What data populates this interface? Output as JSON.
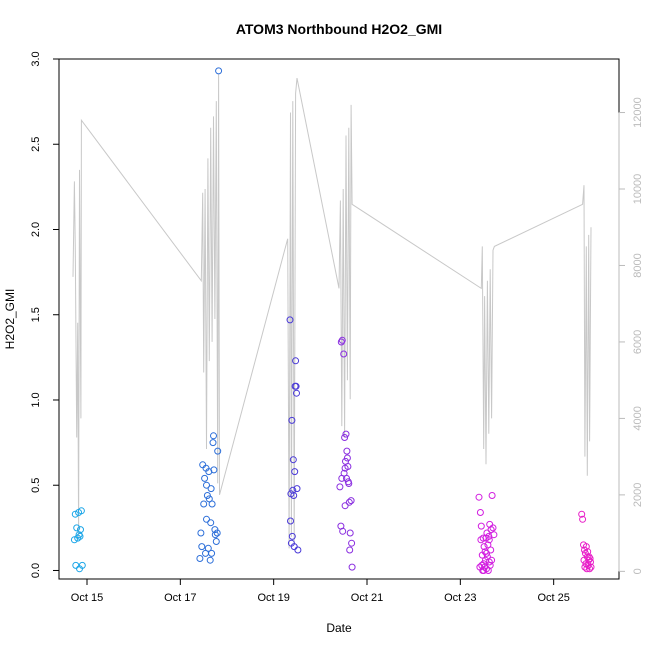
{
  "chart_data": {
    "type": "scatter",
    "title": "ATOM3 Northbound H2O2_GMI",
    "xlabel": "Date",
    "ylabel": "H2O2_GMI",
    "xlim": [
      14.4,
      26.4
    ],
    "ylim": [
      -0.05,
      3.0
    ],
    "x_ticks": [
      {
        "value": 15,
        "label": "Oct 15"
      },
      {
        "value": 17,
        "label": "Oct 17"
      },
      {
        "value": 19,
        "label": "Oct 19"
      },
      {
        "value": 21,
        "label": "Oct 21"
      },
      {
        "value": 23,
        "label": "Oct 23"
      },
      {
        "value": 25,
        "label": "Oct 25"
      }
    ],
    "y_ticks": [
      "0.0",
      "0.5",
      "1.0",
      "1.5",
      "2.0",
      "2.5",
      "3.0"
    ],
    "y2lim": [
      -200,
      13400
    ],
    "y2_ticks": [
      "0",
      "2000",
      "4000",
      "6000",
      "8000",
      "10000",
      "12000"
    ],
    "altitude_color": "#c8c8c8",
    "altitude_series": [
      [
        14.7,
        7700
      ],
      [
        14.73,
        10200
      ],
      [
        14.75,
        8400
      ],
      [
        14.78,
        3500
      ],
      [
        14.8,
        6500
      ],
      [
        14.82,
        900
      ],
      [
        14.84,
        10500
      ],
      [
        14.87,
        4000
      ],
      [
        14.88,
        11800
      ],
      [
        17.45,
        7600
      ],
      [
        17.48,
        9900
      ],
      [
        17.5,
        5200
      ],
      [
        17.53,
        10000
      ],
      [
        17.56,
        3200
      ],
      [
        17.59,
        10800
      ],
      [
        17.62,
        5500
      ],
      [
        17.65,
        11600
      ],
      [
        17.68,
        6000
      ],
      [
        17.71,
        11900
      ],
      [
        17.74,
        6600
      ],
      [
        17.77,
        12300
      ],
      [
        17.8,
        2300
      ],
      [
        17.82,
        13000
      ],
      [
        17.84,
        2000
      ],
      [
        19.3,
        8700
      ],
      [
        19.33,
        600
      ],
      [
        19.36,
        12000
      ],
      [
        19.38,
        900
      ],
      [
        19.41,
        12300
      ],
      [
        19.44,
        700
      ],
      [
        19.47,
        12500
      ],
      [
        19.5,
        12900
      ],
      [
        20.4,
        7400
      ],
      [
        20.43,
        9700
      ],
      [
        20.46,
        3800
      ],
      [
        20.49,
        10000
      ],
      [
        20.52,
        3500
      ],
      [
        20.55,
        11400
      ],
      [
        20.58,
        5000
      ],
      [
        20.61,
        11600
      ],
      [
        20.64,
        4500
      ],
      [
        20.66,
        12200
      ],
      [
        20.68,
        9600
      ],
      [
        23.45,
        7400
      ],
      [
        23.47,
        8500
      ],
      [
        23.5,
        3200
      ],
      [
        23.52,
        7200
      ],
      [
        23.55,
        2800
      ],
      [
        23.58,
        7600
      ],
      [
        23.61,
        3600
      ],
      [
        23.64,
        7900
      ],
      [
        23.67,
        4000
      ],
      [
        23.7,
        8400
      ],
      [
        23.73,
        8500
      ],
      [
        25.62,
        9600
      ],
      [
        25.65,
        10100
      ],
      [
        25.67,
        3000
      ],
      [
        25.7,
        8500
      ],
      [
        25.72,
        2500
      ],
      [
        25.75,
        8800
      ],
      [
        25.77,
        3400
      ],
      [
        25.8,
        9000
      ]
    ],
    "series": [
      {
        "color": "#1ca6e8",
        "points": [
          [
            14.73,
            0.18
          ],
          [
            14.75,
            0.33
          ],
          [
            14.76,
            0.03
          ],
          [
            14.78,
            0.25
          ],
          [
            14.8,
            0.19
          ],
          [
            14.82,
            0.34
          ],
          [
            14.83,
            0.21
          ],
          [
            14.84,
            0.01
          ],
          [
            14.86,
            0.24
          ],
          [
            14.88,
            0.35
          ],
          [
            14.9,
            0.03
          ],
          [
            14.85,
            0.2
          ]
        ]
      },
      {
        "color": "#2d6fd9",
        "points": [
          [
            17.42,
            0.07
          ],
          [
            17.44,
            0.22
          ],
          [
            17.46,
            0.14
          ],
          [
            17.48,
            0.62
          ],
          [
            17.5,
            0.39
          ],
          [
            17.52,
            0.54
          ],
          [
            17.54,
            0.1
          ],
          [
            17.55,
            0.6
          ],
          [
            17.56,
            0.3
          ],
          [
            17.58,
            0.44
          ],
          [
            17.6,
            0.13
          ],
          [
            17.61,
            0.58
          ],
          [
            17.62,
            0.42
          ],
          [
            17.64,
            0.06
          ],
          [
            17.65,
            0.28
          ],
          [
            17.66,
            0.48
          ],
          [
            17.68,
            0.39
          ],
          [
            17.7,
            0.75
          ],
          [
            17.71,
            0.79
          ],
          [
            17.72,
            0.59
          ],
          [
            17.74,
            0.24
          ],
          [
            17.75,
            0.21
          ],
          [
            17.77,
            0.17
          ],
          [
            17.79,
            0.22
          ],
          [
            17.8,
            0.7
          ],
          [
            17.82,
            2.93
          ],
          [
            17.56,
            0.5
          ],
          [
            17.67,
            0.1
          ]
        ]
      },
      {
        "color": "#4a3ad8",
        "points": [
          [
            19.35,
            1.47
          ],
          [
            19.36,
            0.29
          ],
          [
            19.37,
            0.45
          ],
          [
            19.38,
            0.16
          ],
          [
            19.39,
            0.88
          ],
          [
            19.4,
            0.2
          ],
          [
            19.41,
            0.47
          ],
          [
            19.42,
            0.65
          ],
          [
            19.43,
            0.44
          ],
          [
            19.44,
            0.14
          ],
          [
            19.45,
            0.58
          ],
          [
            19.46,
            1.08
          ],
          [
            19.47,
            1.23
          ],
          [
            19.48,
            1.08
          ],
          [
            19.49,
            1.04
          ],
          [
            19.5,
            0.48
          ],
          [
            19.52,
            0.12
          ]
        ]
      },
      {
        "color": "#8a2ee0",
        "points": [
          [
            20.42,
            0.49
          ],
          [
            20.44,
            0.26
          ],
          [
            20.45,
            1.34
          ],
          [
            20.46,
            0.54
          ],
          [
            20.47,
            1.35
          ],
          [
            20.48,
            0.23
          ],
          [
            20.5,
            1.27
          ],
          [
            20.51,
            0.57
          ],
          [
            20.52,
            0.78
          ],
          [
            20.53,
            0.38
          ],
          [
            20.54,
            0.64
          ],
          [
            20.55,
            0.8
          ],
          [
            20.56,
            0.54
          ],
          [
            20.57,
            0.7
          ],
          [
            20.58,
            0.66
          ],
          [
            20.59,
            0.61
          ],
          [
            20.6,
            0.52
          ],
          [
            20.61,
            0.51
          ],
          [
            20.62,
            0.4
          ],
          [
            20.63,
            0.12
          ],
          [
            20.64,
            0.22
          ],
          [
            20.66,
            0.41
          ],
          [
            20.67,
            0.16
          ],
          [
            20.68,
            0.02
          ],
          [
            20.53,
            0.6
          ]
        ]
      },
      {
        "color": "#d21ee0",
        "points": [
          [
            23.4,
            0.43
          ],
          [
            23.42,
            0.02
          ],
          [
            23.43,
            0.34
          ],
          [
            23.44,
            0.18
          ],
          [
            23.45,
            0.26
          ],
          [
            23.46,
            0.03
          ],
          [
            23.47,
            0.09
          ],
          [
            23.48,
            0.0
          ],
          [
            23.49,
            0.19
          ],
          [
            23.5,
            0.04
          ],
          [
            23.51,
            0.14
          ],
          [
            23.52,
            0.02
          ],
          [
            23.53,
            0.11
          ],
          [
            23.54,
            0.06
          ],
          [
            23.55,
            0.19
          ],
          [
            23.56,
            0.01
          ],
          [
            23.57,
            0.22
          ],
          [
            23.58,
            0.08
          ],
          [
            23.59,
            0.15
          ],
          [
            23.6,
            0.0
          ],
          [
            23.61,
            0.2
          ],
          [
            23.62,
            0.05
          ],
          [
            23.63,
            0.27
          ],
          [
            23.64,
            0.03
          ],
          [
            23.65,
            0.12
          ],
          [
            23.66,
            0.24
          ],
          [
            23.67,
            0.06
          ],
          [
            23.68,
            0.44
          ],
          [
            23.7,
            0.25
          ],
          [
            23.72,
            0.21
          ],
          [
            23.5,
            0.0
          ],
          [
            23.56,
            0.1
          ],
          [
            23.62,
            0.18
          ]
        ]
      },
      {
        "color": "#e81ec8",
        "points": [
          [
            25.6,
            0.33
          ],
          [
            25.62,
            0.3
          ],
          [
            25.64,
            0.15
          ],
          [
            25.65,
            0.06
          ],
          [
            25.66,
            0.12
          ],
          [
            25.67,
            0.02
          ],
          [
            25.68,
            0.1
          ],
          [
            25.69,
            0.04
          ],
          [
            25.7,
            0.14
          ],
          [
            25.71,
            0.01
          ],
          [
            25.72,
            0.08
          ],
          [
            25.73,
            0.11
          ],
          [
            25.74,
            0.03
          ],
          [
            25.75,
            0.06
          ],
          [
            25.76,
            0.08
          ],
          [
            25.77,
            0.01
          ],
          [
            25.78,
            0.07
          ],
          [
            25.79,
            0.05
          ],
          [
            25.8,
            0.02
          ]
        ]
      }
    ]
  }
}
